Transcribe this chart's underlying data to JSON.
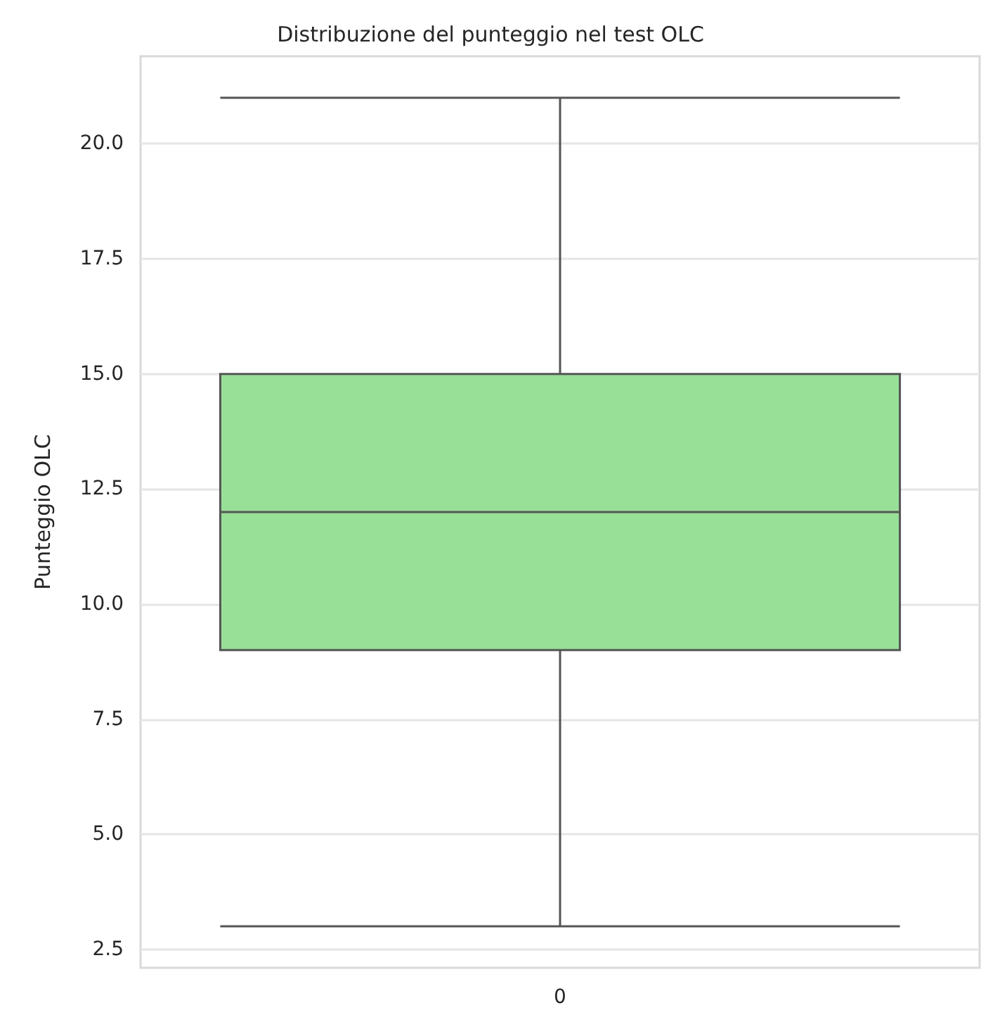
{
  "chart_data": {
    "type": "box",
    "title": "Distribuzione del punteggio nel test OLC",
    "ylabel": "Punteggio OLC",
    "categories": [
      "0"
    ],
    "series": [
      {
        "color": "#98df98",
        "boxes": [
          {
            "low": 3,
            "q1": 9,
            "median": 12,
            "q3": 15,
            "high": 21
          }
        ]
      }
    ],
    "ylim": [
      2.1,
      21.9
    ],
    "yticks": [
      {
        "value": 2.5,
        "label": "2.5"
      },
      {
        "value": 5,
        "label": "5.0"
      },
      {
        "value": 7.5,
        "label": "7.5"
      },
      {
        "value": 10,
        "label": "10.0"
      },
      {
        "value": 12.5,
        "label": "12.5"
      },
      {
        "value": 15,
        "label": "15.0"
      },
      {
        "value": 17.5,
        "label": "17.5"
      },
      {
        "value": 20,
        "label": "20.0"
      }
    ],
    "grid": "y"
  }
}
